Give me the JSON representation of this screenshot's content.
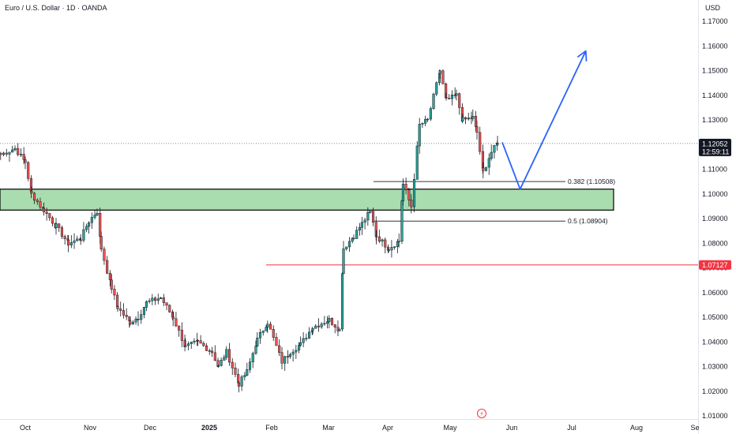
{
  "header": {
    "title": "Euro / U.S. Dollar · 1D · OANDA",
    "currency": "USD"
  },
  "colors": {
    "up": "#26a69a",
    "down": "#ef5350",
    "zone_fill": "#a9dcae",
    "zone_stroke": "#000000",
    "support_line": "#f23645",
    "projection": "#2962ff",
    "last_price_badge": "#131722",
    "support_badge": "#f23645"
  },
  "chart_data": {
    "type": "candlestick",
    "symbol": "EURUSD",
    "timeframe": "1D",
    "x_tick_labels": [
      "Oct",
      "Nov",
      "Dec",
      "2025",
      "Feb",
      "Mar",
      "Apr",
      "May",
      "Jun",
      "Jul",
      "Aug",
      "Se"
    ],
    "y_tick_labels": [
      "1.01000",
      "1.02000",
      "1.03000",
      "1.04000",
      "1.05000",
      "1.06000",
      "1.07000",
      "1.08000",
      "1.09000",
      "1.10000",
      "1.11000",
      "1.12000",
      "1.13000",
      "1.14000",
      "1.15000",
      "1.16000",
      "1.17000"
    ],
    "ylim": [
      1.0075,
      1.1755
    ],
    "last_price": "1.12052",
    "countdown": "12:59:11",
    "support_level": "1.07127",
    "demand_zone": {
      "high": 1.102,
      "low": 1.0935
    },
    "fib_levels": [
      {
        "label": "0.382 (1.10508)",
        "value": 1.10508
      },
      {
        "label": "0.5 (1.08904)",
        "value": 1.08904
      }
    ],
    "anchors": [
      [
        "2024-09-19",
        1.116
      ],
      [
        "2024-09-26",
        1.1185
      ],
      [
        "2024-10-01",
        1.113
      ],
      [
        "2024-10-04",
        1.1
      ],
      [
        "2024-10-10",
        1.0935
      ],
      [
        "2024-10-16",
        1.087
      ],
      [
        "2024-10-22",
        1.08
      ],
      [
        "2024-10-28",
        1.082
      ],
      [
        "2024-11-01",
        1.089
      ],
      [
        "2024-11-05",
        1.093
      ],
      [
        "2024-11-07",
        1.078
      ],
      [
        "2024-11-12",
        1.062
      ],
      [
        "2024-11-15",
        1.054
      ],
      [
        "2024-11-21",
        1.048
      ],
      [
        "2024-11-25",
        1.05
      ],
      [
        "2024-11-29",
        1.056
      ],
      [
        "2024-12-06",
        1.058
      ],
      [
        "2024-12-12",
        1.05
      ],
      [
        "2024-12-18",
        1.038
      ],
      [
        "2024-12-24",
        1.04
      ],
      [
        "2024-12-31",
        1.036
      ],
      [
        "2025-01-03",
        1.03
      ],
      [
        "2025-01-07",
        1.036
      ],
      [
        "2025-01-13",
        1.023
      ],
      [
        "2025-01-17",
        1.028
      ],
      [
        "2025-01-22",
        1.041
      ],
      [
        "2025-01-27",
        1.048
      ],
      [
        "2025-02-03",
        1.032
      ],
      [
        "2025-02-07",
        1.036
      ],
      [
        "2025-02-12",
        1.039
      ],
      [
        "2025-02-18",
        1.046
      ],
      [
        "2025-02-26",
        1.049
      ],
      [
        "2025-03-03",
        1.045
      ],
      [
        "2025-03-05",
        1.078
      ],
      [
        "2025-03-10",
        1.083
      ],
      [
        "2025-03-14",
        1.088
      ],
      [
        "2025-03-18",
        1.093
      ],
      [
        "2025-03-21",
        1.083
      ],
      [
        "2025-03-27",
        1.078
      ],
      [
        "2025-04-01",
        1.081
      ],
      [
        "2025-04-03",
        1.104
      ],
      [
        "2025-04-07",
        1.095
      ],
      [
        "2025-04-11",
        1.128
      ],
      [
        "2025-04-15",
        1.13
      ],
      [
        "2025-04-21",
        1.15
      ],
      [
        "2025-04-24",
        1.138
      ],
      [
        "2025-04-29",
        1.14
      ],
      [
        "2025-05-02",
        1.13
      ],
      [
        "2025-05-07",
        1.131
      ],
      [
        "2025-05-09",
        1.125
      ],
      [
        "2025-05-12",
        1.109
      ],
      [
        "2025-05-16",
        1.117
      ],
      [
        "2025-05-19",
        1.1205
      ]
    ],
    "projection_path": [
      [
        "2025-05-19",
        1.121
      ],
      [
        "2025-05-30",
        1.102
      ],
      [
        "2025-07-01",
        1.158
      ]
    ],
    "annotations": [
      "0.382 (1.10508)",
      "0.5 (1.08904)"
    ]
  }
}
